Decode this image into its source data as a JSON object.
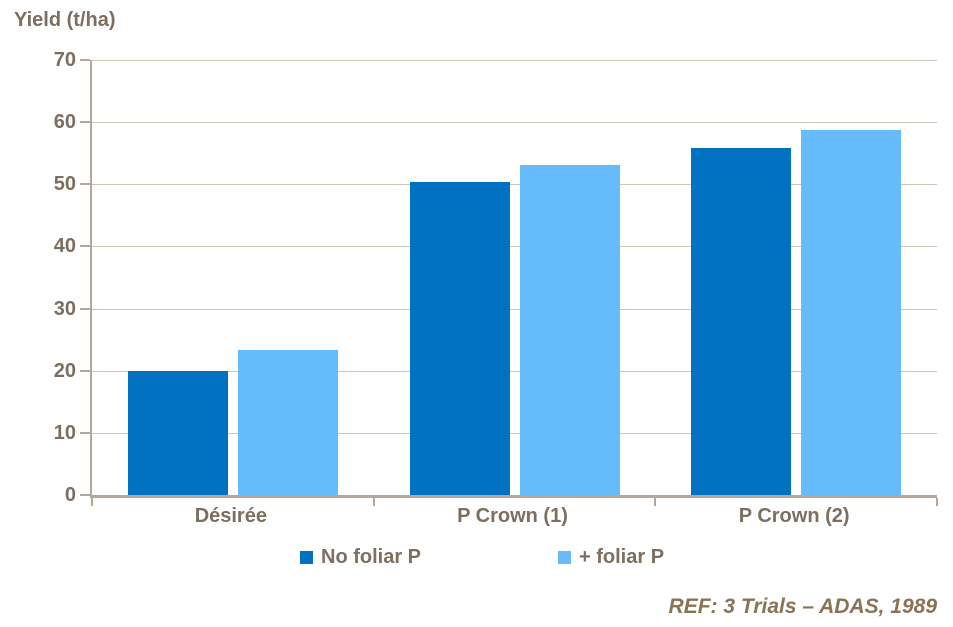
{
  "chart_data": {
    "type": "bar",
    "title": "Yield (t/ha)",
    "categories": [
      "Désirée",
      "P Crown (1)",
      "P Crown (2)"
    ],
    "series": [
      {
        "name": "No foliar P",
        "color": "#0072C1",
        "values": [
          20.0,
          50.4,
          55.9
        ]
      },
      {
        "name": "+ foliar P",
        "color": "#66BBFA",
        "values": [
          23.3,
          53.1,
          58.8
        ]
      }
    ],
    "xlabel": "",
    "ylabel": "Yield (t/ha)",
    "ylim": [
      0,
      70
    ],
    "yticks": [
      0,
      10,
      20,
      30,
      40,
      50,
      60,
      70
    ],
    "grid": "horizontal",
    "legend_position": "bottom",
    "annotation": "REF: 3 Trials – ADAS, 1989"
  },
  "styles": {
    "series_colors": [
      "#0072C1",
      "#66BBFA"
    ],
    "label_color": "#7D6E5F",
    "annotation_color": "#8B7254",
    "gridline_color": "#CCC6BA",
    "axis_color": "#B3A89B",
    "background": "#FFFFFF"
  }
}
